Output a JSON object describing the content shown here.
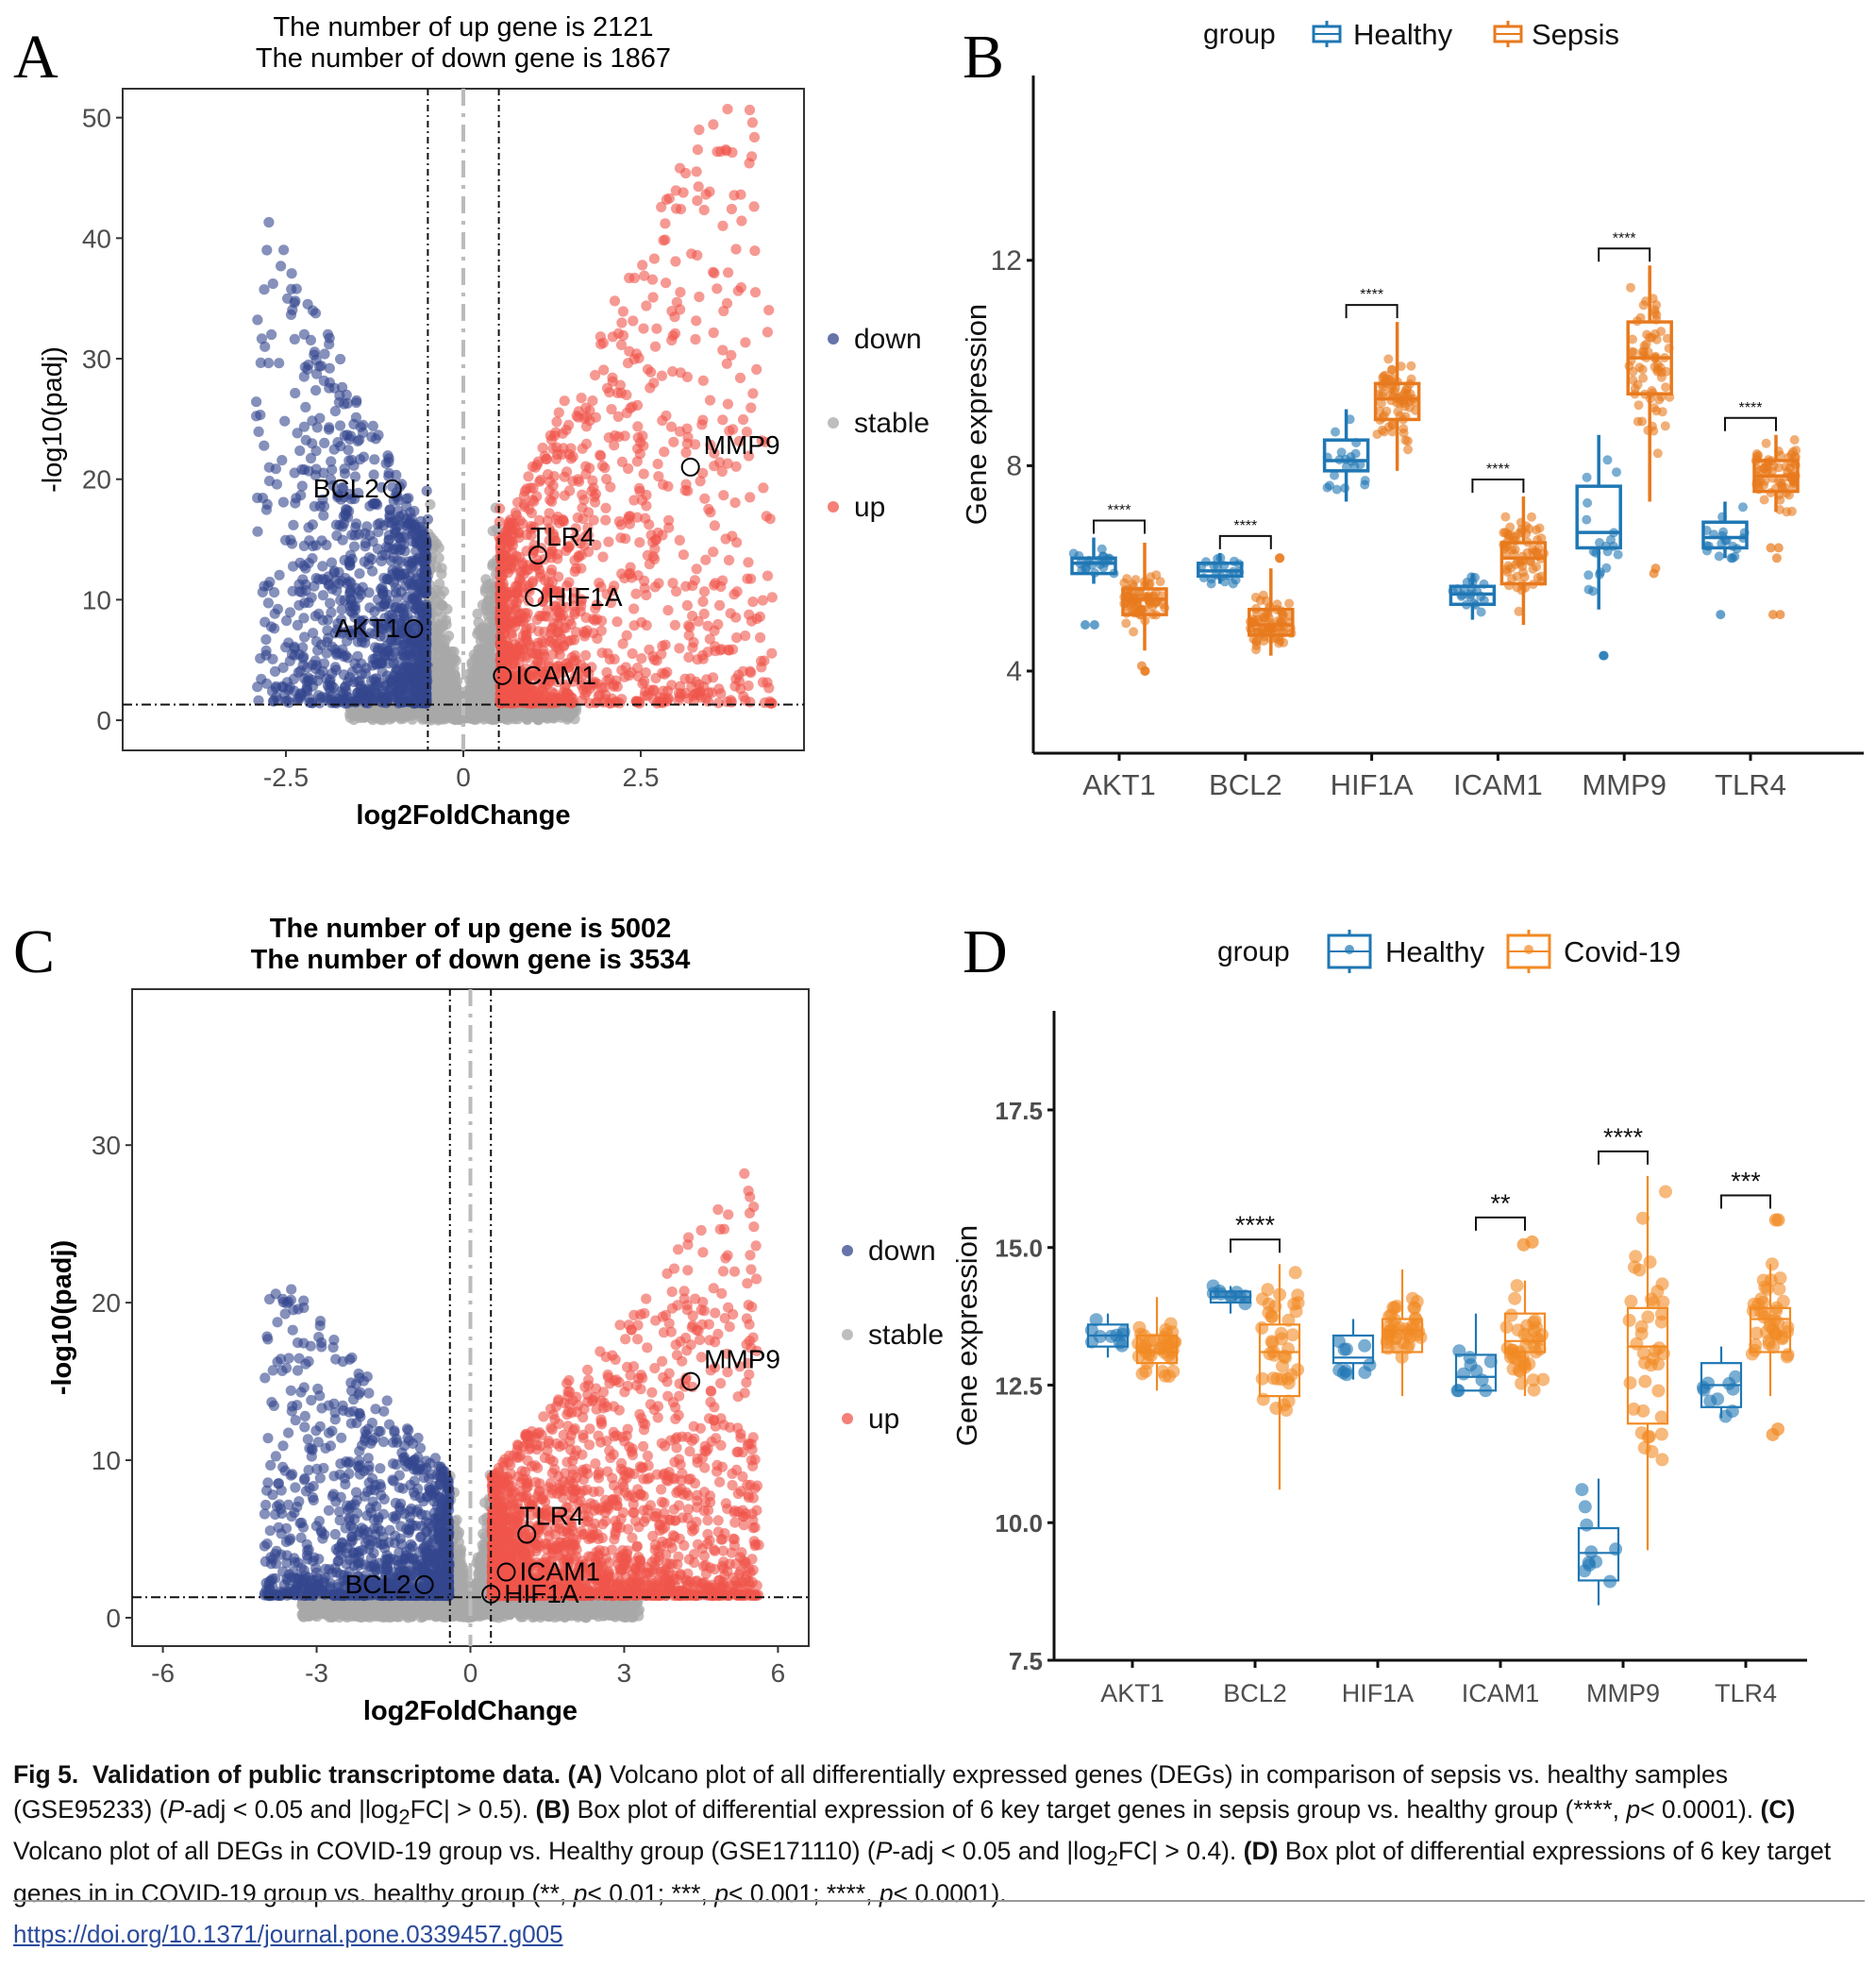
{
  "panel_labels": [
    "A",
    "B",
    "C",
    "D"
  ],
  "colors": {
    "down": "#34468e",
    "stable": "#a8a8a8",
    "up": "#f0554b",
    "healthy": "#1f77b4",
    "sepsis": "#e8791d",
    "covid": "#f28a24"
  },
  "chart_data": [
    {
      "panel": "A",
      "type": "scatter",
      "title": [
        "The number of up gene is 2121",
        "The number of down gene is 1867"
      ],
      "xlabel": "log2FoldChange",
      "ylabel": "-log10(padj)",
      "xlim": [
        -4.8,
        4.8
      ],
      "ylim": [
        -2.5,
        52.4
      ],
      "xticks": [
        -2.5,
        0,
        2.5
      ],
      "xtick_labels": [
        "-2.5",
        "0",
        "2.5"
      ],
      "yticks": [
        0,
        10,
        20,
        30,
        40,
        50
      ],
      "ytick_labels": [
        "0",
        "10",
        "20",
        "30",
        "40",
        "50"
      ],
      "thresholds": {
        "log2fc": 0.5,
        "neglog10_padj": 1.3
      },
      "counts": {
        "up": 2121,
        "down": 1867
      },
      "legend": {
        "position": "right",
        "entries": [
          "down",
          "stable",
          "up"
        ]
      },
      "grid": false,
      "labeled_genes": [
        {
          "gene": "BCL2",
          "x": -1.0,
          "y": 19.2
        },
        {
          "gene": "AKT1",
          "x": -0.7,
          "y": 7.6
        },
        {
          "gene": "TLR4",
          "x": 1.05,
          "y": 13.7
        },
        {
          "gene": "HIF1A",
          "x": 1.0,
          "y": 10.2
        },
        {
          "gene": "ICAM1",
          "x": 0.55,
          "y": 3.7
        },
        {
          "gene": "MMP9",
          "x": 3.2,
          "y": 21.0
        }
      ]
    },
    {
      "panel": "B",
      "type": "box",
      "ylabel": "Gene expression",
      "ylim": [
        2.4,
        15.6
      ],
      "yticks": [
        4,
        8,
        12
      ],
      "ytick_labels": [
        "4",
        "8",
        "12"
      ],
      "categories": [
        "AKT1",
        "BCL2",
        "HIF1A",
        "ICAM1",
        "MMP9",
        "TLR4"
      ],
      "legend": {
        "title": "group",
        "position": "top",
        "entries": [
          "Healthy",
          "Sepsis"
        ]
      },
      "series": [
        {
          "name": "Healthy",
          "boxes": [
            {
              "q1": 5.9,
              "median": 6.1,
              "q3": 6.2,
              "min": 5.7,
              "max": 6.6,
              "outliers": [
                4.9,
                4.9
              ]
            },
            {
              "q1": 5.85,
              "median": 5.95,
              "q3": 6.1,
              "min": 5.7,
              "max": 6.3,
              "outliers": []
            },
            {
              "q1": 7.9,
              "median": 8.1,
              "q3": 8.5,
              "min": 7.3,
              "max": 9.1,
              "outliers": []
            },
            {
              "q1": 5.3,
              "median": 5.5,
              "q3": 5.65,
              "min": 5.0,
              "max": 5.9,
              "outliers": []
            },
            {
              "q1": 6.4,
              "median": 6.7,
              "q3": 7.6,
              "min": 5.2,
              "max": 8.6,
              "outliers": [
                4.3,
                4.3
              ]
            },
            {
              "q1": 6.4,
              "median": 6.6,
              "q3": 6.9,
              "min": 6.2,
              "max": 7.3,
              "outliers": [
                5.1
              ]
            }
          ]
        },
        {
          "name": "Sepsis",
          "boxes": [
            {
              "q1": 5.1,
              "median": 5.4,
              "q3": 5.6,
              "min": 4.4,
              "max": 6.5,
              "outliers": [
                4.0,
                4.0,
                4.1
              ]
            },
            {
              "q1": 4.7,
              "median": 4.9,
              "q3": 5.2,
              "min": 4.3,
              "max": 6.0,
              "outliers": [
                6.2,
                6.2
              ]
            },
            {
              "q1": 8.9,
              "median": 9.3,
              "q3": 9.6,
              "min": 7.9,
              "max": 10.8,
              "outliers": []
            },
            {
              "q1": 5.7,
              "median": 6.2,
              "q3": 6.5,
              "min": 4.9,
              "max": 7.4,
              "outliers": []
            },
            {
              "q1": 9.4,
              "median": 10.1,
              "q3": 10.8,
              "min": 7.3,
              "max": 11.9,
              "outliers": [
                6.0,
                5.9
              ]
            },
            {
              "q1": 7.5,
              "median": 7.8,
              "q3": 8.1,
              "min": 7.1,
              "max": 8.6,
              "outliers": [
                6.4,
                6.2,
                6.4,
                5.1,
                5.1
              ]
            }
          ]
        }
      ],
      "significance": [
        "****",
        "****",
        "****",
        "****",
        "****",
        "****"
      ]
    },
    {
      "panel": "C",
      "type": "scatter",
      "title": [
        "The number of up gene is 5002",
        "The number of down gene is 3534"
      ],
      "xlabel": "log2FoldChange",
      "ylabel": "-log10(padj)",
      "xlim": [
        -6.6,
        6.6
      ],
      "ylim": [
        -1.8,
        39.9
      ],
      "xticks": [
        -6,
        -3,
        0,
        3,
        6
      ],
      "xtick_labels": [
        "-6",
        "-3",
        "0",
        "3",
        "6"
      ],
      "yticks": [
        0,
        10,
        20,
        30
      ],
      "ytick_labels": [
        "0",
        "10",
        "20",
        "30"
      ],
      "thresholds": {
        "log2fc": 0.4,
        "neglog10_padj": 1.3
      },
      "counts": {
        "up": 5002,
        "down": 3534
      },
      "legend": {
        "position": "right",
        "entries": [
          "down",
          "stable",
          "up"
        ]
      },
      "grid": false,
      "labeled_genes": [
        {
          "gene": "BCL2",
          "x": -0.9,
          "y": 2.1
        },
        {
          "gene": "HIF1A",
          "x": 0.4,
          "y": 1.5
        },
        {
          "gene": "ICAM1",
          "x": 0.7,
          "y": 2.9
        },
        {
          "gene": "TLR4",
          "x": 1.1,
          "y": 5.3
        },
        {
          "gene": "MMP9",
          "x": 4.3,
          "y": 15.0
        }
      ]
    },
    {
      "panel": "D",
      "type": "box",
      "ylabel": "Gene expression",
      "ylim": [
        7.5,
        19.3
      ],
      "yticks": [
        7.5,
        10.0,
        12.5,
        15.0,
        17.5
      ],
      "ytick_labels": [
        "7.5",
        "10.0",
        "12.5",
        "15.0",
        "17.5"
      ],
      "categories": [
        "AKT1",
        "BCL2",
        "HIF1A",
        "ICAM1",
        "MMP9",
        "TLR4"
      ],
      "legend": {
        "title": "group",
        "position": "top",
        "entries": [
          "Healthy",
          "Covid-19"
        ]
      },
      "series": [
        {
          "name": "Healthy",
          "boxes": [
            {
              "q1": 13.2,
              "median": 13.4,
              "q3": 13.6,
              "min": 13.0,
              "max": 13.8,
              "outliers": []
            },
            {
              "q1": 14.0,
              "median": 14.1,
              "q3": 14.2,
              "min": 13.8,
              "max": 14.3,
              "outliers": []
            },
            {
              "q1": 12.9,
              "median": 13.0,
              "q3": 13.4,
              "min": 12.6,
              "max": 13.7,
              "outliers": []
            },
            {
              "q1": 12.4,
              "median": 12.65,
              "q3": 13.05,
              "min": 12.4,
              "max": 13.8,
              "outliers": []
            },
            {
              "q1": 8.95,
              "median": 9.45,
              "q3": 9.9,
              "min": 8.5,
              "max": 10.8,
              "outliers": []
            },
            {
              "q1": 12.1,
              "median": 12.5,
              "q3": 12.9,
              "min": 11.9,
              "max": 13.2,
              "outliers": []
            }
          ]
        },
        {
          "name": "Covid-19",
          "boxes": [
            {
              "q1": 12.9,
              "median": 13.1,
              "q3": 13.4,
              "min": 12.4,
              "max": 14.1,
              "outliers": []
            },
            {
              "q1": 12.3,
              "median": 13.1,
              "q3": 13.6,
              "min": 10.6,
              "max": 14.7,
              "outliers": []
            },
            {
              "q1": 13.1,
              "median": 13.5,
              "q3": 13.7,
              "min": 12.3,
              "max": 14.6,
              "outliers": []
            },
            {
              "q1": 13.1,
              "median": 13.3,
              "q3": 13.8,
              "min": 12.3,
              "max": 14.4,
              "outliers": [
                15.1,
                15.05
              ]
            },
            {
              "q1": 11.8,
              "median": 13.2,
              "q3": 13.9,
              "min": 9.5,
              "max": 16.3,
              "outliers": []
            },
            {
              "q1": 13.1,
              "median": 13.7,
              "q3": 13.9,
              "min": 12.3,
              "max": 14.7,
              "outliers": [
                15.5,
                15.5,
                11.7,
                11.6
              ]
            }
          ]
        }
      ],
      "significance": [
        "",
        "****",
        "",
        "**",
        "****",
        "***"
      ]
    }
  ],
  "caption": {
    "fig": "Fig 5.",
    "title": "Validation of public transcriptome data.",
    "a_label": "(A)",
    "a_text": "Volcano plot of all differentially expressed genes (DEGs) in comparison of sepsis vs. healthy samples (GSE95233) (",
    "a_p": "P",
    "a_text2": "-adj < 0.05 and |log",
    "a_sub": "2",
    "a_text3": "FC| > 0.5).",
    "b_label": "(B)",
    "b_text": "Box plot of differential expression of 6 key target genes in sepsis group vs. healthy group (****,",
    "b_p": "p",
    "b_text2": "< 0.0001).",
    "c_label": "(C)",
    "c_text": "Volcano plot of all DEGs in COVID-19 group vs. Healthy group (GSE171110) (",
    "c_p": "P",
    "c_text2": "-adj < 0.05 and |log",
    "c_sub": "2",
    "c_text3": "FC| > 0.4).",
    "d_label": "(D)",
    "d_text": "Box plot of differential expressions of 6 key target genes in in COVID-19 group vs. healthy group (**,",
    "d_p1": "p",
    "d_t1": "< 0.01; ***,",
    "d_p2": "p",
    "d_t2": "< 0.001; ****,",
    "d_p3": "p",
    "d_t3": "< 0.0001)."
  },
  "doi_link": "https://doi.org/10.1371/journal.pone.0339457.g005"
}
